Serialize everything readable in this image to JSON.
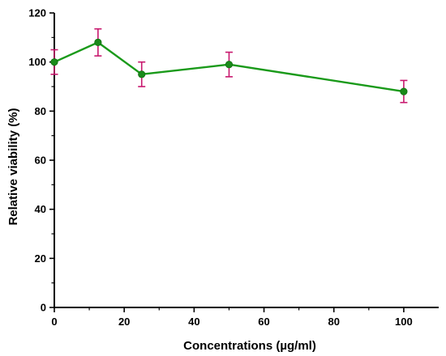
{
  "chart_data": {
    "type": "line",
    "title": "",
    "xlabel": "Concentrations (µg/ml)",
    "ylabel": "Relative viability (%)",
    "xlim": [
      0,
      110
    ],
    "ylim": [
      0,
      120
    ],
    "xticks": [
      0,
      20,
      40,
      60,
      80,
      100
    ],
    "yticks": [
      0,
      20,
      40,
      60,
      80,
      100,
      120
    ],
    "grid": false,
    "series": [
      {
        "x": [
          0,
          12.5,
          25,
          50,
          100
        ],
        "values": [
          100,
          108,
          95,
          99,
          88
        ],
        "error": [
          5,
          5.5,
          5,
          5,
          4.5
        ]
      }
    ],
    "colors": {
      "line": "#1a9a1a",
      "marker": "#1a8a1a",
      "errorbar": "#c8186e",
      "axis": "#000000"
    }
  }
}
